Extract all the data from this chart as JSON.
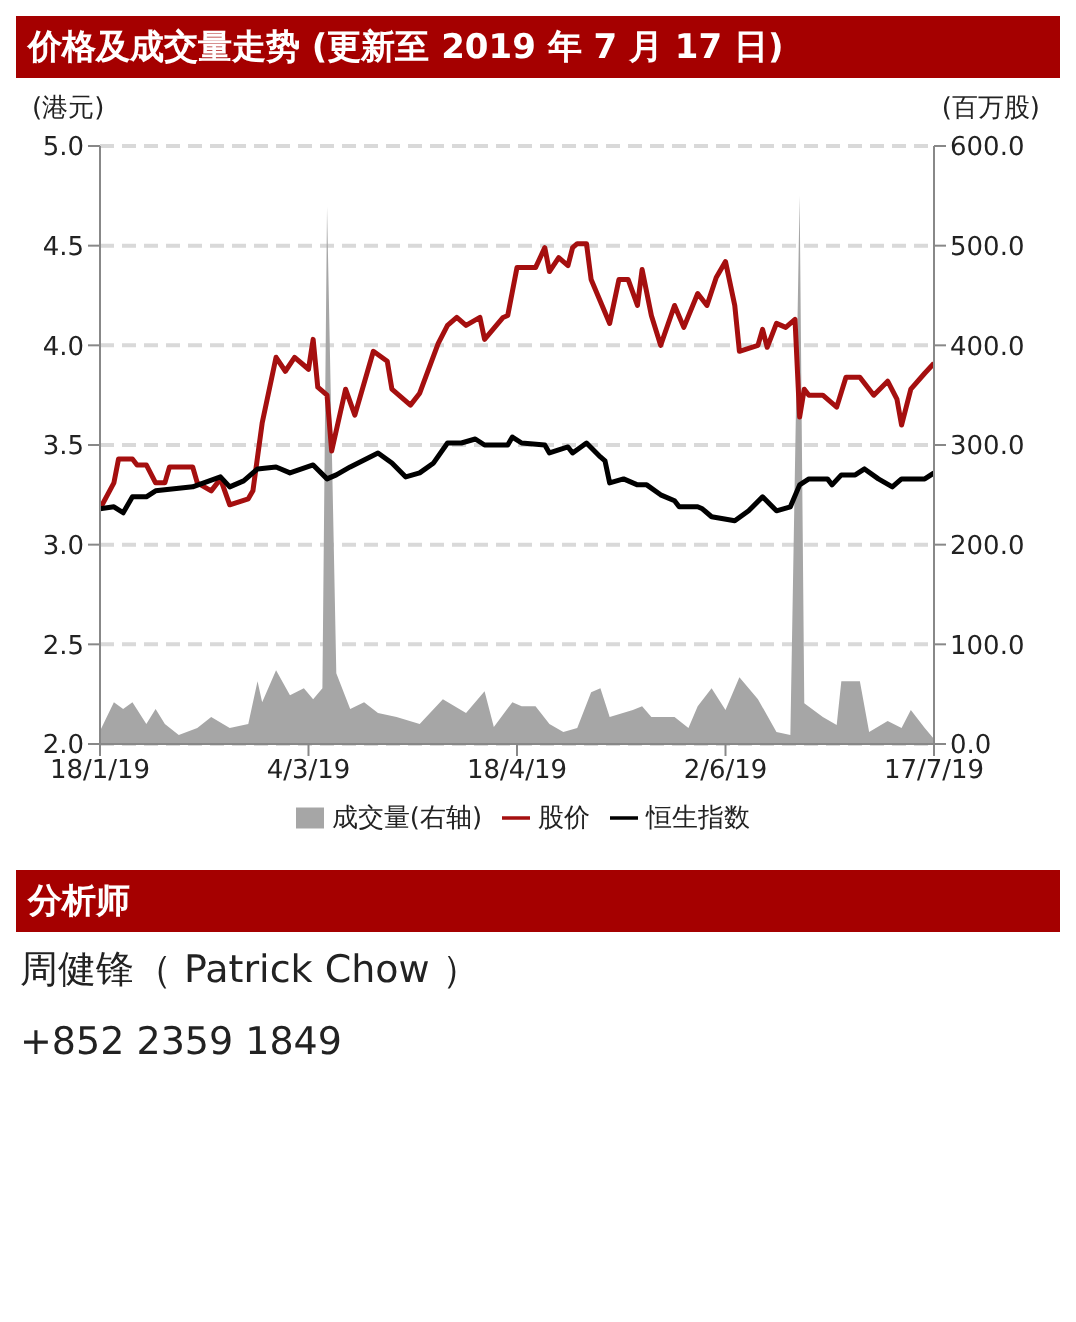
{
  "chart_data": {
    "type": "line",
    "title": "价格及成交量走势 (更新至 2019 年 7 月 17 日)",
    "ylabel": "(港元)",
    "y2label": "(百万股)",
    "xlim": [
      "2019-01-18",
      "2019-07-17"
    ],
    "xticks": [
      {
        "value": "2019-01-18",
        "label": "18/1/19"
      },
      {
        "value": "2019-03-04",
        "label": "4/3/19"
      },
      {
        "value": "2019-04-18",
        "label": "18/4/19"
      },
      {
        "value": "2019-06-02",
        "label": "2/6/19"
      },
      {
        "value": "2019-07-17",
        "label": "17/7/19"
      }
    ],
    "ylim": [
      2,
      5
    ],
    "yticks": [
      {
        "value": 2,
        "label": "2.0"
      },
      {
        "value": 2.5,
        "label": "2.5"
      },
      {
        "value": 3,
        "label": "3.0"
      },
      {
        "value": 3.5,
        "label": "3.5"
      },
      {
        "value": 4,
        "label": "4.0"
      },
      {
        "value": 4.5,
        "label": "4.5"
      },
      {
        "value": 5,
        "label": "5.0"
      }
    ],
    "y2lim": [
      0,
      600
    ],
    "y2ticks": [
      {
        "value": 0,
        "label": "0.0"
      },
      {
        "value": 100,
        "label": "100.0"
      },
      {
        "value": 200,
        "label": "200.0"
      },
      {
        "value": 300,
        "label": "300.0"
      },
      {
        "value": 400,
        "label": "400.0"
      },
      {
        "value": 500,
        "label": "500.0"
      },
      {
        "value": 600,
        "label": "600.0"
      }
    ],
    "grid": "y",
    "legend": "bottom",
    "marker": "none",
    "series": [
      {
        "name": "成交量(右轴)",
        "type": "area",
        "axis": "y2",
        "color": "#a6a6a6",
        "x": [
          "2019-01-18",
          "2019-01-21",
          "2019-01-23",
          "2019-01-25",
          "2019-01-28",
          "2019-01-30",
          "2019-02-01",
          "2019-02-04",
          "2019-02-08",
          "2019-02-11",
          "2019-02-15",
          "2019-02-19",
          "2019-02-21",
          "2019-02-22",
          "2019-02-25",
          "2019-02-28",
          "2019-03-03",
          "2019-03-05",
          "2019-03-07",
          "2019-03-08",
          "2019-03-10",
          "2019-03-13",
          "2019-03-16",
          "2019-03-19",
          "2019-03-23",
          "2019-03-28",
          "2019-04-02",
          "2019-04-07",
          "2019-04-11",
          "2019-04-13",
          "2019-04-17",
          "2019-04-19",
          "2019-04-22",
          "2019-04-25",
          "2019-04-28",
          "2019-05-01",
          "2019-05-04",
          "2019-05-06",
          "2019-05-08",
          "2019-05-13",
          "2019-05-15",
          "2019-05-17",
          "2019-05-22",
          "2019-05-25",
          "2019-05-27",
          "2019-05-30",
          "2019-06-02",
          "2019-06-05",
          "2019-06-09",
          "2019-06-13",
          "2019-06-16",
          "2019-06-18",
          "2019-06-19",
          "2019-06-23",
          "2019-06-26",
          "2019-06-27",
          "2019-07-01",
          "2019-07-03",
          "2019-07-07",
          "2019-07-10",
          "2019-07-12",
          "2019-07-15",
          "2019-07-17"
        ],
        "values": [
          13,
          42,
          35,
          42,
          20,
          35,
          20,
          9,
          16,
          27,
          16,
          20,
          63,
          42,
          74,
          49,
          56,
          45,
          56,
          539,
          71,
          35,
          42,
          31,
          27,
          20,
          45,
          31,
          53,
          17,
          42,
          38,
          38,
          20,
          12,
          16,
          52,
          56,
          27,
          34,
          38,
          27,
          27,
          16,
          38,
          56,
          34,
          67,
          45,
          12,
          9,
          550,
          41,
          27,
          19,
          63,
          63,
          12,
          23,
          16,
          34,
          16,
          5
        ]
      },
      {
        "name": "股价",
        "color": "#a50f0f",
        "x": [
          "2019-01-18",
          "2019-01-21",
          "2019-01-22",
          "2019-01-25",
          "2019-01-26",
          "2019-01-28",
          "2019-01-30",
          "2019-02-01",
          "2019-02-02",
          "2019-02-07",
          "2019-02-08",
          "2019-02-11",
          "2019-02-13",
          "2019-02-15",
          "2019-02-19",
          "2019-02-20",
          "2019-02-22",
          "2019-02-25",
          "2019-02-27",
          "2019-03-01",
          "2019-03-03",
          "2019-03-04",
          "2019-03-05",
          "2019-03-06",
          "2019-03-08",
          "2019-03-09",
          "2019-03-12",
          "2019-03-14",
          "2019-03-18",
          "2019-03-21",
          "2019-03-22",
          "2019-03-26",
          "2019-03-28",
          "2019-04-01",
          "2019-04-03",
          "2019-04-05",
          "2019-04-07",
          "2019-04-10",
          "2019-04-11",
          "2019-04-15",
          "2019-04-16",
          "2019-04-18",
          "2019-04-22",
          "2019-04-24",
          "2019-04-25",
          "2019-04-27",
          "2019-04-29",
          "2019-04-30",
          "2019-05-01",
          "2019-05-03",
          "2019-05-04",
          "2019-05-06",
          "2019-05-08",
          "2019-05-10",
          "2019-05-12",
          "2019-05-14",
          "2019-05-15",
          "2019-05-17",
          "2019-05-19",
          "2019-05-22",
          "2019-05-24",
          "2019-05-27",
          "2019-05-29",
          "2019-05-31",
          "2019-06-02",
          "2019-06-04",
          "2019-06-05",
          "2019-06-09",
          "2019-06-10",
          "2019-06-11",
          "2019-06-13",
          "2019-06-15",
          "2019-06-17",
          "2019-06-18",
          "2019-06-19",
          "2019-06-20",
          "2019-06-23",
          "2019-06-26",
          "2019-06-28",
          "2019-07-01",
          "2019-07-04",
          "2019-07-07",
          "2019-07-09",
          "2019-07-10",
          "2019-07-12",
          "2019-07-15",
          "2019-07-17"
        ],
        "values": [
          3.18,
          3.31,
          3.43,
          3.43,
          3.4,
          3.4,
          3.31,
          3.31,
          3.39,
          3.39,
          3.31,
          3.27,
          3.33,
          3.2,
          3.23,
          3.27,
          3.61,
          3.94,
          3.87,
          3.94,
          3.9,
          3.88,
          4.03,
          3.79,
          3.75,
          3.47,
          3.78,
          3.65,
          3.97,
          3.92,
          3.78,
          3.7,
          3.76,
          4.01,
          4.1,
          4.14,
          4.1,
          4.14,
          4.03,
          4.14,
          4.15,
          4.39,
          4.39,
          4.49,
          4.37,
          4.44,
          4.4,
          4.49,
          4.51,
          4.51,
          4.33,
          4.22,
          4.11,
          4.33,
          4.33,
          4.2,
          4.38,
          4.15,
          4.0,
          4.2,
          4.09,
          4.26,
          4.2,
          4.34,
          4.42,
          4.2,
          3.97,
          4.0,
          4.08,
          3.99,
          4.11,
          4.09,
          4.13,
          3.64,
          3.78,
          3.75,
          3.75,
          3.69,
          3.84,
          3.84,
          3.75,
          3.82,
          3.73,
          3.6,
          3.78,
          3.86,
          3.91
        ]
      },
      {
        "name": "恒生指数",
        "color": "#000000",
        "x": [
          "2019-01-18",
          "2019-01-21",
          "2019-01-23",
          "2019-01-25",
          "2019-01-28",
          "2019-01-30",
          "2019-02-07",
          "2019-02-13",
          "2019-02-15",
          "2019-02-18",
          "2019-02-21",
          "2019-02-25",
          "2019-02-28",
          "2019-03-05",
          "2019-03-08",
          "2019-03-10",
          "2019-03-13",
          "2019-03-19",
          "2019-03-22",
          "2019-03-25",
          "2019-03-28",
          "2019-03-31",
          "2019-04-03",
          "2019-04-06",
          "2019-04-09",
          "2019-04-11",
          "2019-04-16",
          "2019-04-17",
          "2019-04-19",
          "2019-04-24",
          "2019-04-25",
          "2019-04-29",
          "2019-04-30",
          "2019-05-03",
          "2019-05-06",
          "2019-05-07",
          "2019-05-08",
          "2019-05-11",
          "2019-05-14",
          "2019-05-16",
          "2019-05-19",
          "2019-05-22",
          "2019-05-23",
          "2019-05-27",
          "2019-05-28",
          "2019-05-30",
          "2019-06-04",
          "2019-06-07",
          "2019-06-10",
          "2019-06-13",
          "2019-06-16",
          "2019-06-18",
          "2019-06-20",
          "2019-06-24",
          "2019-06-25",
          "2019-06-27",
          "2019-06-30",
          "2019-07-02",
          "2019-07-05",
          "2019-07-08",
          "2019-07-10",
          "2019-07-15",
          "2019-07-17"
        ],
        "values": [
          3.18,
          3.19,
          3.16,
          3.24,
          3.24,
          3.27,
          3.29,
          3.34,
          3.29,
          3.32,
          3.38,
          3.39,
          3.36,
          3.4,
          3.33,
          3.35,
          3.39,
          3.46,
          3.41,
          3.34,
          3.36,
          3.41,
          3.51,
          3.51,
          3.53,
          3.5,
          3.5,
          3.54,
          3.51,
          3.5,
          3.46,
          3.49,
          3.46,
          3.51,
          3.44,
          3.42,
          3.31,
          3.33,
          3.3,
          3.3,
          3.25,
          3.22,
          3.19,
          3.19,
          3.18,
          3.14,
          3.12,
          3.17,
          3.24,
          3.17,
          3.19,
          3.3,
          3.33,
          3.33,
          3.3,
          3.35,
          3.35,
          3.38,
          3.33,
          3.29,
          3.33,
          3.33,
          3.36
        ]
      }
    ],
    "annotations": [
      "分析师",
      "周健锋（ Patrick Chow ）",
      "+852 2359 1849"
    ]
  }
}
